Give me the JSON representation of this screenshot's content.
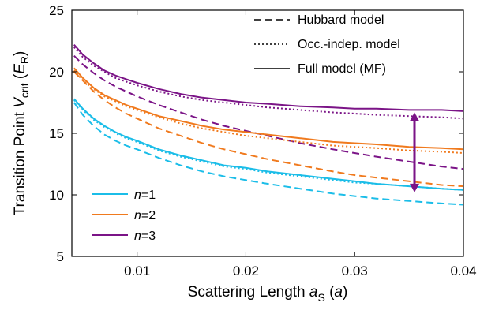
{
  "chart_data": {
    "type": "line",
    "xlabel_parts": {
      "main": "Scattering Length ",
      "sym": "a",
      "sub": "S",
      "unit_open": " (",
      "unit": "a",
      "unit_close": ")"
    },
    "ylabel_parts": {
      "main": "Transition Point ",
      "sym": "V",
      "sub": "crit",
      "unit_open": " (",
      "unit": "E",
      "unit_sub": "R",
      "unit_close": ")"
    },
    "xlim": [
      0.004,
      0.04
    ],
    "ylim": [
      5,
      25
    ],
    "xticks": [
      0.01,
      0.02,
      0.03,
      0.04
    ],
    "xtick_labels": [
      "0.01",
      "0.02",
      "0.03",
      "0.04"
    ],
    "yticks": [
      5,
      10,
      15,
      20,
      25
    ],
    "ytick_labels": [
      "5",
      "10",
      "15",
      "20",
      "25"
    ],
    "x": [
      0.0042,
      0.005,
      0.006,
      0.007,
      0.008,
      0.009,
      0.01,
      0.012,
      0.014,
      0.016,
      0.018,
      0.02,
      0.022,
      0.025,
      0.028,
      0.03,
      0.032,
      0.035,
      0.038,
      0.04
    ],
    "style_legend": [
      {
        "label": "Hubbard model",
        "dash": "dashed"
      },
      {
        "label": "Occ.-indep. model",
        "dash": "dotted"
      },
      {
        "label": "Full model (MF)",
        "dash": "solid"
      }
    ],
    "color_legend": [
      {
        "sym": "n",
        "suffix": "=1",
        "color": "#1BBDE8"
      },
      {
        "sym": "n",
        "suffix": "=2",
        "color": "#F07A1E"
      },
      {
        "sym": "n",
        "suffix": "=3",
        "color": "#7B1487"
      }
    ],
    "series": [
      {
        "group": "n=1",
        "model": "Hubbard model",
        "dash": "dashed",
        "color": "#1BBDE8",
        "values": [
          17.5,
          16.5,
          15.6,
          14.9,
          14.4,
          14.0,
          13.7,
          13.0,
          12.4,
          11.9,
          11.5,
          11.2,
          10.9,
          10.5,
          10.1,
          9.9,
          9.7,
          9.5,
          9.3,
          9.2
        ]
      },
      {
        "group": "n=1",
        "model": "Occ.-indep. model",
        "dash": "dotted",
        "color": "#1BBDE8",
        "values": [
          17.7,
          16.9,
          16.1,
          15.5,
          15.0,
          14.6,
          14.3,
          13.6,
          13.1,
          12.7,
          12.3,
          12.1,
          11.8,
          11.5,
          11.2,
          11.0,
          10.9,
          10.7,
          10.5,
          10.4
        ]
      },
      {
        "group": "n=1",
        "model": "Full model (MF)",
        "dash": "solid",
        "color": "#1BBDE8",
        "values": [
          17.8,
          17.0,
          16.2,
          15.6,
          15.1,
          14.7,
          14.4,
          13.7,
          13.2,
          12.8,
          12.4,
          12.2,
          11.9,
          11.6,
          11.3,
          11.1,
          10.9,
          10.7,
          10.5,
          10.4
        ]
      },
      {
        "group": "n=2",
        "model": "Hubbard model",
        "dash": "dashed",
        "color": "#F07A1E",
        "values": [
          20.0,
          19.3,
          18.4,
          17.7,
          17.1,
          16.6,
          16.2,
          15.4,
          14.8,
          14.2,
          13.7,
          13.3,
          12.9,
          12.4,
          11.9,
          11.6,
          11.4,
          11.1,
          10.8,
          10.7
        ]
      },
      {
        "group": "n=2",
        "model": "Occ.-indep. model",
        "dash": "dotted",
        "color": "#F07A1E",
        "values": [
          20.1,
          19.3,
          18.6,
          18.0,
          17.6,
          17.2,
          16.9,
          16.3,
          15.8,
          15.4,
          15.1,
          14.8,
          14.6,
          14.3,
          14.0,
          13.9,
          13.8,
          13.6,
          13.5,
          13.4
        ]
      },
      {
        "group": "n=2",
        "model": "Full model (MF)",
        "dash": "solid",
        "color": "#F07A1E",
        "values": [
          20.3,
          19.5,
          18.7,
          18.1,
          17.7,
          17.3,
          17.0,
          16.4,
          16.0,
          15.6,
          15.3,
          15.1,
          14.9,
          14.6,
          14.3,
          14.2,
          14.1,
          13.9,
          13.8,
          13.7
        ]
      },
      {
        "group": "n=3",
        "model": "Hubbard model",
        "dash": "dashed",
        "color": "#7B1487",
        "values": [
          21.3,
          20.6,
          19.9,
          19.3,
          18.8,
          18.4,
          18.0,
          17.3,
          16.7,
          16.1,
          15.6,
          15.2,
          14.8,
          14.2,
          13.7,
          13.4,
          13.1,
          12.7,
          12.3,
          12.1
        ]
      },
      {
        "group": "n=3",
        "model": "Occ.-indep. model",
        "dash": "dotted",
        "color": "#7B1487",
        "values": [
          22.0,
          21.2,
          20.5,
          20.0,
          19.5,
          19.2,
          18.9,
          18.4,
          18.0,
          17.7,
          17.5,
          17.3,
          17.1,
          16.9,
          16.7,
          16.6,
          16.5,
          16.4,
          16.3,
          16.2
        ]
      },
      {
        "group": "n=3",
        "model": "Full model (MF)",
        "dash": "solid",
        "color": "#7B1487",
        "values": [
          22.2,
          21.4,
          20.7,
          20.1,
          19.7,
          19.4,
          19.1,
          18.6,
          18.2,
          17.9,
          17.7,
          17.5,
          17.4,
          17.2,
          17.1,
          17.0,
          17.0,
          16.9,
          16.9,
          16.8
        ]
      }
    ],
    "annotation": {
      "type": "double-arrow",
      "x": 0.0355,
      "y_from": 10.2,
      "y_to": 16.7,
      "color": "#7B1487"
    }
  }
}
